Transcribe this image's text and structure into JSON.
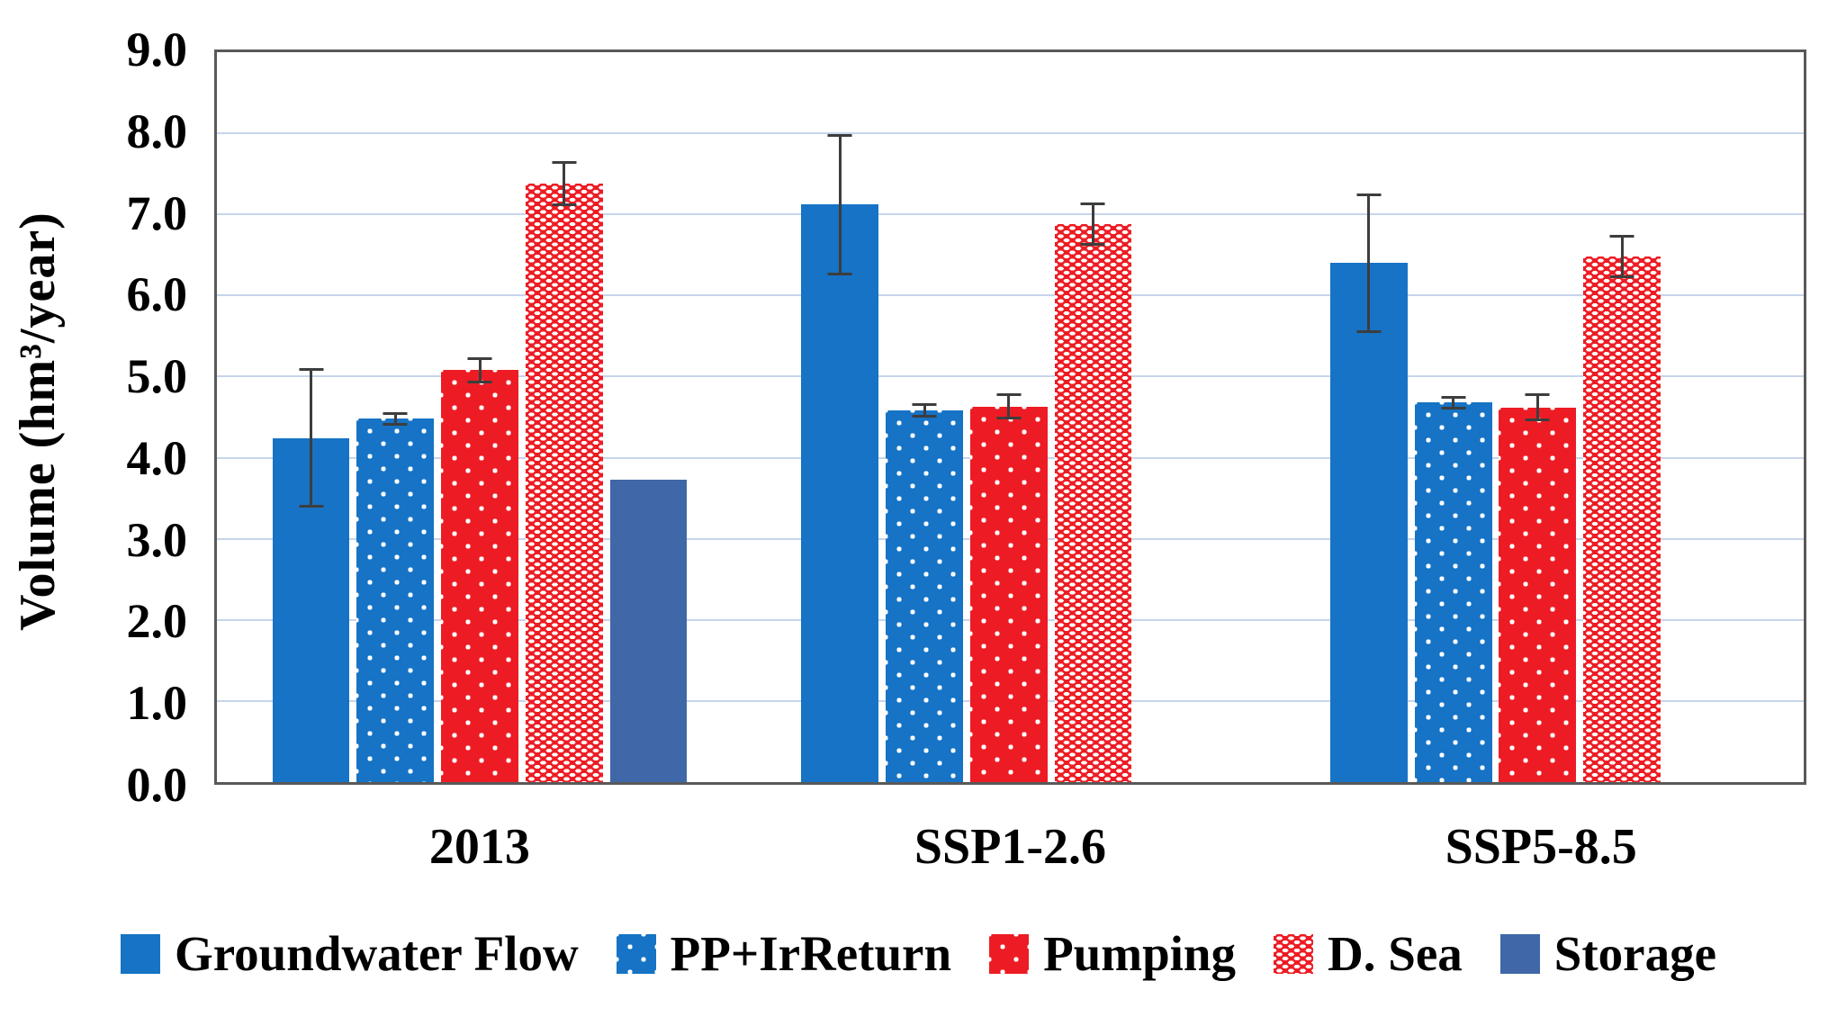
{
  "chart_data": {
    "type": "bar",
    "title": "",
    "ylabel": "Volume (hm³/year)",
    "xlabel": "",
    "ylim": [
      0,
      9
    ],
    "ytick_step": 1.0,
    "ytick_labels": [
      "9.0",
      "8.0",
      "7.0",
      "6.0",
      "5.0",
      "4.0",
      "3.0",
      "2.0",
      "1.0",
      "0.0"
    ],
    "categories": [
      "2013",
      "SSP1-2.6",
      "SSP5-8.5"
    ],
    "series": [
      {
        "name": "Groundwater Flow",
        "color": "#1673C5",
        "pattern": "solid",
        "values": [
          4.24,
          7.12,
          6.4
        ],
        "errors": [
          0.86,
          0.87,
          0.86
        ]
      },
      {
        "name": "PP+IrReturn",
        "color": "#1673C5",
        "pattern": "dots",
        "values": [
          4.48,
          4.58,
          4.68
        ],
        "errors": [
          0.08,
          0.09,
          0.08
        ]
      },
      {
        "name": "Pumping",
        "color": "#ED1C24",
        "pattern": "dots",
        "values": [
          5.08,
          4.63,
          4.62
        ],
        "errors": [
          0.16,
          0.16,
          0.17
        ]
      },
      {
        "name": "D. Sea",
        "color": "#ED1C24",
        "pattern": "dense-dots",
        "values": [
          7.38,
          6.88,
          6.48
        ],
        "errors": [
          0.28,
          0.27,
          0.27
        ]
      },
      {
        "name": "Storage",
        "color": "#4068A8",
        "pattern": "solid",
        "values": [
          3.73,
          null,
          null
        ],
        "errors": [
          null,
          null,
          null
        ]
      }
    ],
    "grid": "horizontal",
    "gridline_color": "#C7D4EA",
    "axis_color": "#595959",
    "error_bar_color": "#3D3D3D",
    "legend_position": "bottom"
  }
}
